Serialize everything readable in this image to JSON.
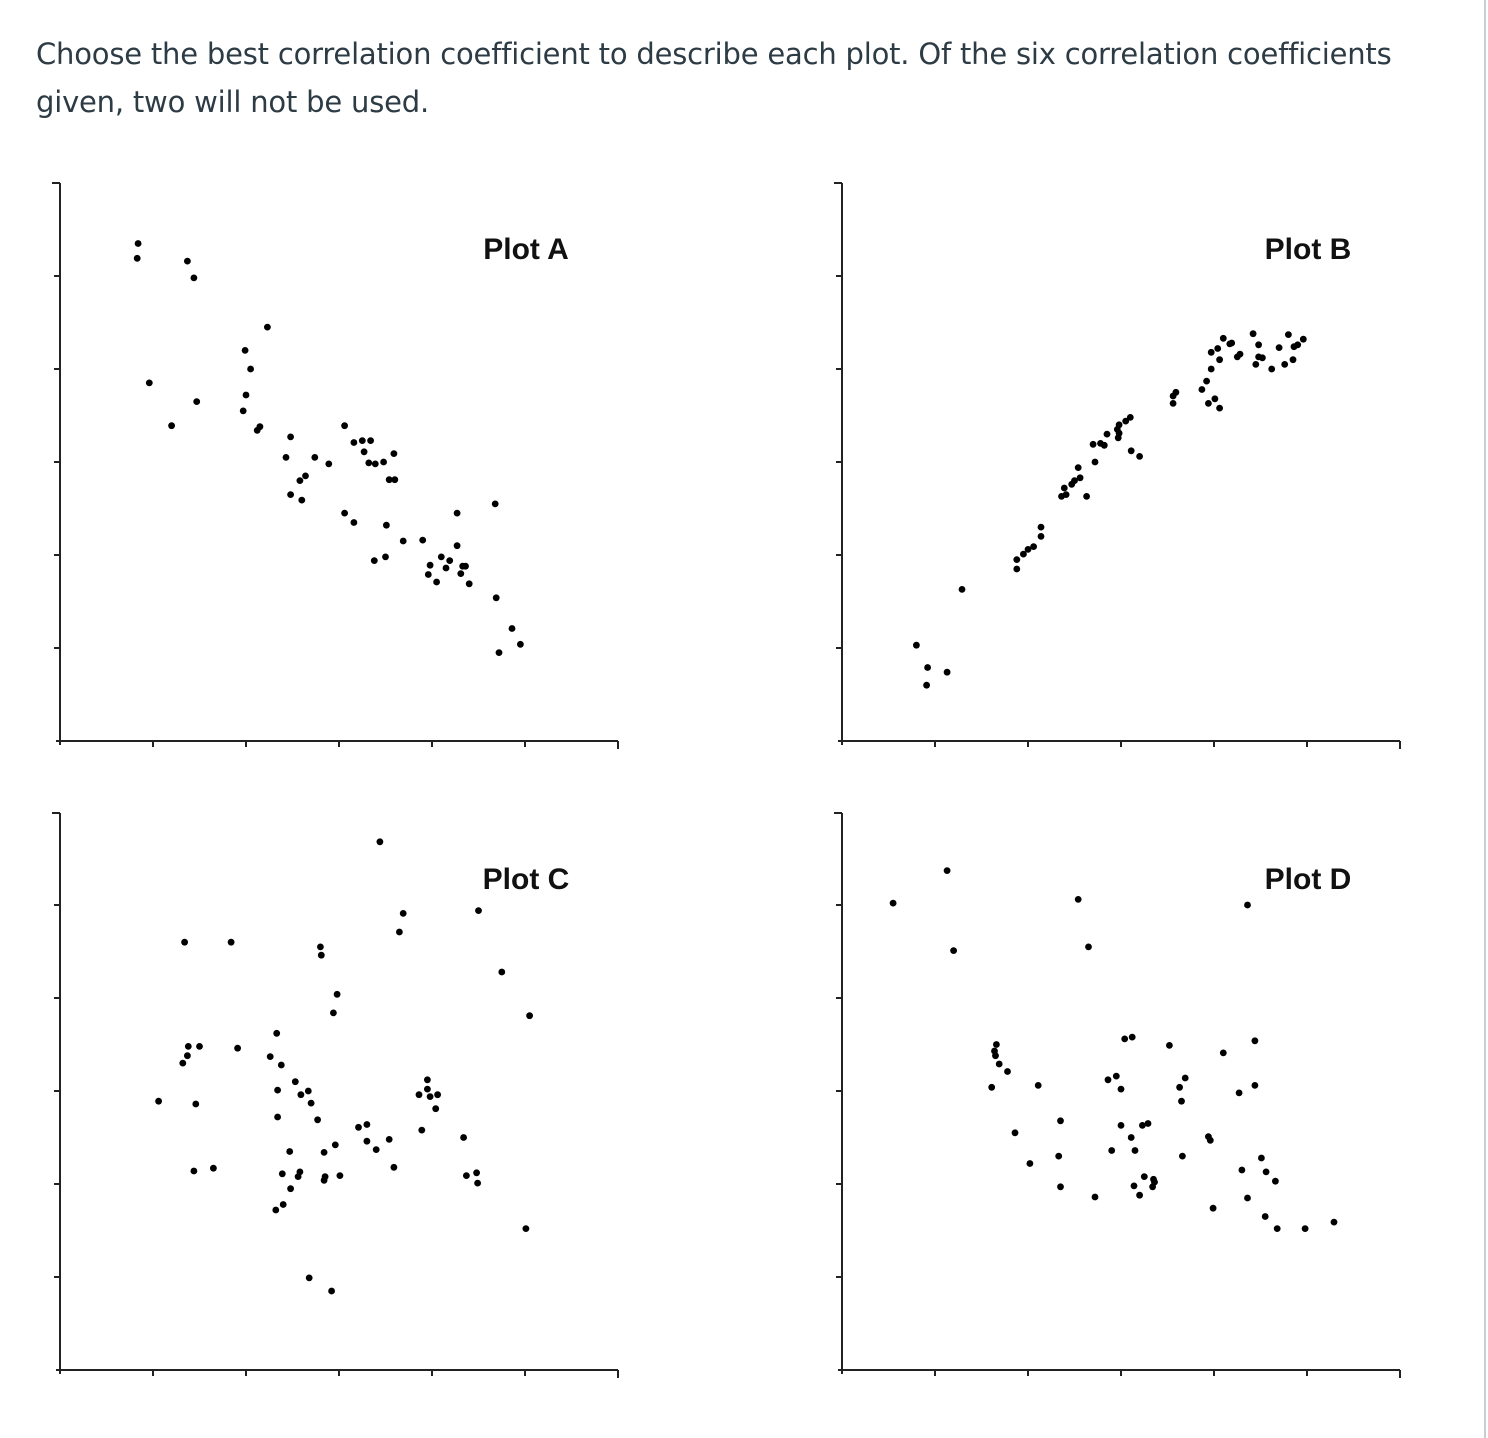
{
  "question": {
    "text": "Choose the best correlation coefficient to describe each plot. Of the six correlation coefficients given, two will not be used."
  },
  "colors": {
    "text": "#2d3b45",
    "axis": "#222222",
    "point": "#000000",
    "border": "#c7cdd1"
  },
  "chart_data": [
    {
      "type": "scatter",
      "title": "Plot A",
      "xlim": [
        0,
        6
      ],
      "ylim": [
        0,
        6
      ],
      "x_ticks": [
        1,
        2,
        3,
        4,
        5,
        6
      ],
      "y_ticks": [
        1,
        2,
        3,
        4,
        5,
        6
      ],
      "grid": false,
      "x": [
        0.84,
        0.83,
        1.37,
        1.44,
        0.96,
        1.2,
        2.23,
        1.99,
        2.05,
        2.0,
        1.47,
        1.97,
        2.12,
        2.15,
        2.48,
        2.74,
        2.64,
        2.43,
        2.58,
        2.89,
        3.16,
        3.06,
        3.34,
        3.59,
        3.25,
        3.27,
        3.6,
        3.39,
        3.32,
        3.48,
        3.54,
        4.68,
        2.48,
        2.6,
        3.16,
        3.06,
        3.9,
        3.51,
        3.69,
        3.5,
        3.38,
        4.19,
        4.1,
        4.27,
        3.98,
        4.36,
        4.15,
        4.05,
        3.96,
        4.31,
        4.33,
        4.27,
        4.4,
        4.69,
        4.95,
        4.86,
        4.72
      ],
      "y": [
        5.35,
        5.19,
        5.16,
        4.98,
        3.85,
        3.39,
        4.45,
        4.2,
        4.0,
        3.72,
        3.65,
        3.55,
        3.34,
        3.38,
        3.27,
        3.05,
        2.85,
        3.05,
        2.8,
        2.98,
        3.21,
        3.39,
        3.23,
        3.09,
        3.23,
        3.11,
        2.81,
        2.98,
        2.99,
        3.0,
        2.81,
        2.55,
        2.65,
        2.59,
        2.35,
        2.45,
        2.16,
        2.32,
        2.15,
        1.98,
        1.94,
        1.94,
        1.98,
        2.1,
        1.89,
        1.88,
        1.86,
        1.71,
        1.79,
        1.8,
        1.88,
        2.45,
        1.69,
        1.54,
        1.04,
        1.21,
        0.95
      ]
    },
    {
      "type": "scatter",
      "title": "Plot B",
      "xlim": [
        0,
        6
      ],
      "ylim": [
        0,
        6
      ],
      "x_ticks": [
        1,
        2,
        3,
        4,
        5,
        6
      ],
      "y_ticks": [
        1,
        2,
        3,
        4,
        5,
        6
      ],
      "grid": false,
      "x": [
        0.8,
        0.92,
        0.91,
        1.13,
        1.29,
        1.88,
        1.88,
        1.95,
        2.06,
        2.0,
        2.14,
        2.14,
        2.36,
        2.39,
        2.5,
        2.41,
        2.47,
        2.54,
        2.63,
        2.56,
        2.72,
        2.7,
        2.78,
        2.85,
        2.82,
        2.98,
        2.96,
        2.97,
        3.05,
        3.1,
        2.98,
        3.11,
        3.2,
        3.56,
        3.59,
        3.56,
        3.94,
        3.92,
        3.87,
        3.97,
        4.01,
        4.06,
        3.97,
        4.04,
        4.06,
        4.1,
        4.19,
        4.17,
        4.25,
        4.28,
        4.42,
        4.48,
        4.48,
        4.45,
        4.52,
        4.62,
        4.7,
        4.76,
        4.8,
        4.85,
        4.86,
        4.9,
        4.96
      ],
      "y": [
        1.03,
        0.79,
        0.6,
        0.74,
        1.63,
        1.85,
        1.95,
        2.01,
        2.09,
        2.06,
        2.3,
        2.2,
        2.63,
        2.72,
        2.8,
        2.65,
        2.76,
        2.94,
        2.63,
        2.83,
        3.0,
        3.19,
        3.2,
        3.3,
        3.18,
        3.4,
        3.35,
        3.26,
        3.44,
        3.48,
        3.31,
        3.12,
        3.06,
        3.63,
        3.75,
        3.71,
        3.63,
        3.87,
        3.78,
        4.0,
        3.68,
        3.58,
        4.18,
        4.22,
        4.1,
        4.33,
        4.28,
        4.27,
        4.13,
        4.16,
        4.38,
        4.26,
        4.13,
        4.05,
        4.12,
        4.0,
        4.23,
        4.05,
        4.37,
        4.1,
        4.24,
        4.26,
        4.32
      ]
    },
    {
      "type": "scatter",
      "title": "Plot C",
      "xlim": [
        0,
        6
      ],
      "ylim": [
        0,
        6
      ],
      "x_ticks": [
        1,
        2,
        3,
        4,
        5,
        6
      ],
      "y_ticks": [
        1,
        2,
        3,
        4,
        5,
        6
      ],
      "grid": false,
      "x": [
        3.44,
        1.34,
        1.84,
        2.8,
        2.81,
        2.98,
        2.94,
        1.06,
        1.46,
        1.44,
        1.65,
        1.38,
        1.37,
        1.32,
        1.5,
        1.91,
        2.33,
        2.26,
        2.38,
        2.53,
        2.34,
        2.59,
        2.67,
        2.7,
        2.77,
        2.96,
        3.3,
        3.54,
        3.59,
        3.65,
        3.69,
        3.86,
        3.95,
        3.95,
        3.89,
        3.98,
        4.06,
        4.5,
        4.75,
        5.05,
        5.01,
        4.34,
        4.49,
        4.37,
        4.48,
        2.39,
        2.56,
        2.48,
        2.4,
        2.32,
        2.84,
        3.01,
        2.85,
        3.3,
        3.21,
        2.84,
        2.58,
        2.47,
        2.34,
        3.4,
        4.04,
        2.68,
        2.92
      ],
      "y": [
        5.68,
        4.6,
        4.6,
        4.55,
        4.46,
        4.04,
        3.84,
        2.89,
        2.86,
        2.14,
        2.17,
        3.48,
        3.38,
        3.3,
        3.48,
        3.46,
        3.62,
        3.37,
        3.28,
        3.1,
        3.01,
        2.96,
        3.0,
        2.87,
        2.69,
        2.42,
        2.46,
        2.48,
        2.18,
        4.71,
        4.91,
        2.96,
        3.12,
        3.02,
        2.58,
        2.94,
        2.96,
        4.94,
        4.28,
        3.81,
        1.52,
        2.5,
        2.01,
        2.09,
        2.12,
        2.11,
        2.08,
        1.95,
        1.78,
        1.72,
        2.04,
        2.09,
        2.08,
        2.64,
        2.61,
        2.34,
        2.13,
        2.35,
        2.72,
        2.37,
        2.81,
        0.99,
        0.85
      ]
    },
    {
      "type": "scatter",
      "title": "Plot D",
      "xlim": [
        0,
        6
      ],
      "ylim": [
        0,
        6
      ],
      "x_ticks": [
        1,
        2,
        3,
        4,
        5,
        6
      ],
      "y_ticks": [
        1,
        2,
        3,
        4,
        5,
        6
      ],
      "grid": false,
      "x": [
        0.55,
        1.13,
        1.2,
        2.54,
        4.36,
        2.65,
        1.66,
        1.64,
        1.65,
        1.69,
        1.78,
        2.11,
        2.35,
        2.33,
        2.86,
        2.95,
        3.04,
        3.12,
        3.0,
        3.25,
        3.0,
        3.11,
        3.52,
        3.63,
        3.69,
        3.65,
        3.94,
        4.1,
        3.96,
        4.27,
        4.51,
        4.3,
        4.56,
        4.66,
        4.44,
        3.15,
        2.9,
        3.23,
        3.29,
        3.35,
        3.34,
        3.66,
        3.99,
        4.36,
        4.98,
        5.29,
        2.02,
        1.86,
        2.35,
        1.61,
        3.36,
        3.2,
        2.72,
        3.14,
        4.68,
        4.44,
        4.55
      ],
      "y": [
        5.02,
        5.37,
        4.51,
        5.06,
        5.0,
        4.55,
        3.5,
        3.43,
        3.38,
        3.29,
        3.21,
        3.06,
        2.68,
        2.3,
        3.12,
        3.16,
        3.56,
        3.58,
        3.02,
        2.08,
        2.63,
        2.5,
        3.49,
        3.04,
        3.14,
        2.89,
        2.51,
        3.41,
        2.47,
        2.98,
        2.28,
        2.15,
        2.13,
        2.03,
        3.54,
        2.36,
        2.36,
        2.63,
        2.65,
        2.05,
        1.97,
        2.3,
        1.74,
        1.85,
        1.52,
        1.59,
        2.22,
        2.55,
        1.97,
        3.04,
        2.02,
        1.88,
        1.86,
        1.98,
        1.52,
        3.06,
        1.65
      ]
    }
  ]
}
